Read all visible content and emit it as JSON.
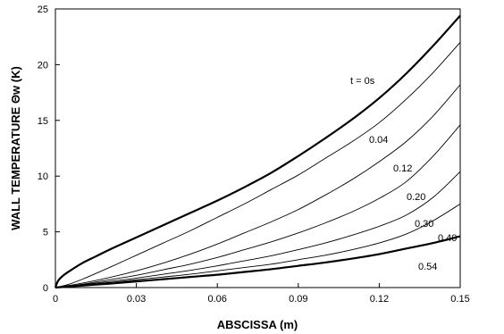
{
  "chart_data": {
    "type": "line",
    "title": "",
    "xlabel": "ABSCISSA (m)",
    "ylabel": "WALL TEMPERATURE Θw (K)",
    "xlim": [
      0,
      0.15
    ],
    "ylim": [
      0,
      25
    ],
    "x_ticks": [
      "0",
      "0.03",
      "0.06",
      "0.09",
      "0.12",
      "0.15"
    ],
    "y_ticks": [
      "0",
      "5",
      "10",
      "15",
      "20",
      "25"
    ],
    "grid": false,
    "series": [
      {
        "name": "t = 0s",
        "bold": true,
        "x": [
          0,
          0.001,
          0.003,
          0.006,
          0.01,
          0.015,
          0.02,
          0.03,
          0.04,
          0.05,
          0.06,
          0.07,
          0.08,
          0.09,
          0.1,
          0.11,
          0.12,
          0.13,
          0.14,
          0.15
        ],
        "y": [
          0,
          0.6,
          1.1,
          1.6,
          2.2,
          2.8,
          3.4,
          4.5,
          5.6,
          6.7,
          7.8,
          9.0,
          10.3,
          11.8,
          13.4,
          15.1,
          17.0,
          19.2,
          21.7,
          24.4
        ]
      },
      {
        "name": "0.04",
        "bold": false,
        "x": [
          0,
          0.005,
          0.01,
          0.02,
          0.03,
          0.04,
          0.05,
          0.06,
          0.07,
          0.08,
          0.09,
          0.1,
          0.11,
          0.12,
          0.13,
          0.14,
          0.15
        ],
        "y": [
          0,
          0.3,
          0.75,
          1.8,
          2.9,
          4.0,
          5.1,
          6.3,
          7.5,
          8.8,
          10.1,
          11.6,
          13.1,
          14.8,
          16.9,
          19.3,
          22.0
        ]
      },
      {
        "name": "0.12",
        "bold": false,
        "x": [
          0,
          0.01,
          0.02,
          0.03,
          0.04,
          0.05,
          0.06,
          0.07,
          0.08,
          0.09,
          0.1,
          0.11,
          0.12,
          0.13,
          0.14,
          0.15
        ],
        "y": [
          0,
          0.4,
          0.9,
          1.5,
          2.2,
          3.0,
          3.9,
          4.9,
          5.9,
          7.0,
          8.3,
          9.7,
          11.3,
          13.1,
          15.4,
          18.2
        ]
      },
      {
        "name": "0.20",
        "bold": false,
        "x": [
          0,
          0.01,
          0.02,
          0.03,
          0.04,
          0.05,
          0.06,
          0.07,
          0.08,
          0.09,
          0.1,
          0.11,
          0.12,
          0.13,
          0.14,
          0.15
        ],
        "y": [
          0,
          0.3,
          0.7,
          1.1,
          1.6,
          2.1,
          2.7,
          3.4,
          4.1,
          4.9,
          5.8,
          6.8,
          8.0,
          9.5,
          11.8,
          14.6
        ]
      },
      {
        "name": "0.30",
        "bold": false,
        "x": [
          0,
          0.01,
          0.02,
          0.03,
          0.04,
          0.05,
          0.06,
          0.07,
          0.08,
          0.09,
          0.1,
          0.11,
          0.12,
          0.13,
          0.14,
          0.15
        ],
        "y": [
          0,
          0.25,
          0.55,
          0.85,
          1.2,
          1.55,
          1.95,
          2.4,
          2.85,
          3.4,
          4.0,
          4.7,
          5.5,
          6.5,
          8.1,
          10.4
        ]
      },
      {
        "name": "0.40",
        "bold": false,
        "x": [
          0,
          0.01,
          0.02,
          0.03,
          0.04,
          0.05,
          0.06,
          0.07,
          0.08,
          0.09,
          0.1,
          0.11,
          0.12,
          0.13,
          0.14,
          0.15
        ],
        "y": [
          0,
          0.22,
          0.45,
          0.7,
          0.95,
          1.2,
          1.5,
          1.8,
          2.1,
          2.5,
          2.9,
          3.4,
          4.0,
          4.8,
          6.0,
          7.5
        ]
      },
      {
        "name": "0.54",
        "bold": true,
        "x": [
          0,
          0.01,
          0.02,
          0.03,
          0.04,
          0.05,
          0.06,
          0.07,
          0.08,
          0.09,
          0.1,
          0.11,
          0.12,
          0.13,
          0.14,
          0.15
        ],
        "y": [
          0,
          0.18,
          0.35,
          0.55,
          0.75,
          0.95,
          1.15,
          1.4,
          1.65,
          1.95,
          2.25,
          2.6,
          3.0,
          3.5,
          4.0,
          4.6
        ]
      }
    ],
    "annotations": [
      "t = 0s",
      "0.04",
      "0.12",
      "0.20",
      "0.30",
      "0.40",
      "0.54"
    ]
  }
}
